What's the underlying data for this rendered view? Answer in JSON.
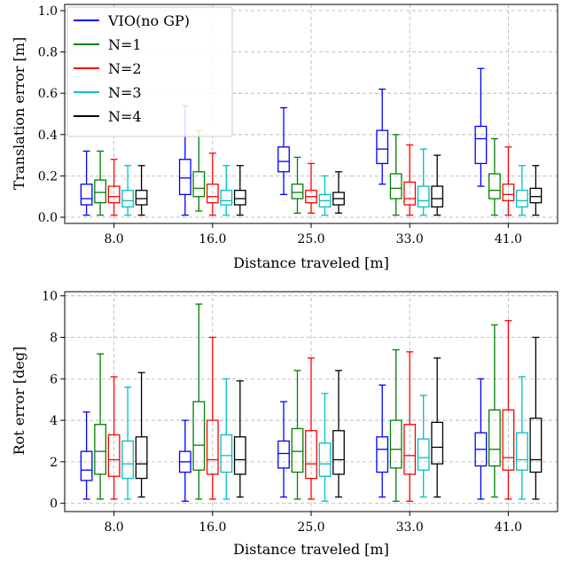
{
  "chart_data": [
    {
      "type": "box",
      "xlabel": "Distance traveled [m]",
      "ylabel": "Translation error [m]",
      "ylim": [
        -0.03,
        1.03
      ],
      "yticks": [
        0.0,
        0.2,
        0.4,
        0.6,
        0.8,
        1.0
      ],
      "ytick_labels": [
        "0.0",
        "0.2",
        "0.4",
        "0.6",
        "0.8",
        "1.0"
      ],
      "grid": true,
      "categories": [
        "8.0",
        "16.0",
        "25.0",
        "33.0",
        "41.0"
      ],
      "legend": {
        "placement": "top-left",
        "entries": [
          "VIO(no GP)",
          "N=1",
          "N=2",
          "N=3",
          "N=4"
        ]
      },
      "series": [
        {
          "name": "VIO(no GP)",
          "color": "#0000ff",
          "boxes": [
            {
              "whislo": 0.01,
              "q1": 0.06,
              "med": 0.09,
              "q3": 0.16,
              "whishi": 0.32
            },
            {
              "whislo": 0.01,
              "q1": 0.11,
              "med": 0.19,
              "q3": 0.28,
              "whishi": 0.54
            },
            {
              "whislo": 0.11,
              "q1": 0.22,
              "med": 0.27,
              "q3": 0.34,
              "whishi": 0.53
            },
            {
              "whislo": 0.16,
              "q1": 0.26,
              "med": 0.33,
              "q3": 0.42,
              "whishi": 0.62
            },
            {
              "whislo": 0.15,
              "q1": 0.26,
              "med": 0.38,
              "q3": 0.44,
              "whishi": 0.72
            }
          ]
        },
        {
          "name": "N=1",
          "color": "#008000",
          "boxes": [
            {
              "whislo": 0.01,
              "q1": 0.07,
              "med": 0.12,
              "q3": 0.18,
              "whishi": 0.32
            },
            {
              "whislo": 0.03,
              "q1": 0.1,
              "med": 0.14,
              "q3": 0.22,
              "whishi": 0.42
            },
            {
              "whislo": 0.02,
              "q1": 0.09,
              "med": 0.12,
              "q3": 0.16,
              "whishi": 0.29
            },
            {
              "whislo": 0.01,
              "q1": 0.09,
              "med": 0.14,
              "q3": 0.21,
              "whishi": 0.4
            },
            {
              "whislo": 0.01,
              "q1": 0.09,
              "med": 0.13,
              "q3": 0.21,
              "whishi": 0.38
            }
          ]
        },
        {
          "name": "N=2",
          "color": "#ff0000",
          "boxes": [
            {
              "whislo": 0.01,
              "q1": 0.07,
              "med": 0.1,
              "q3": 0.15,
              "whishi": 0.28
            },
            {
              "whislo": 0.01,
              "q1": 0.07,
              "med": 0.1,
              "q3": 0.16,
              "whishi": 0.31
            },
            {
              "whislo": 0.02,
              "q1": 0.07,
              "med": 0.1,
              "q3": 0.13,
              "whishi": 0.26
            },
            {
              "whislo": 0.01,
              "q1": 0.06,
              "med": 0.09,
              "q3": 0.17,
              "whishi": 0.35
            },
            {
              "whislo": 0.01,
              "q1": 0.08,
              "med": 0.11,
              "q3": 0.16,
              "whishi": 0.34
            }
          ]
        },
        {
          "name": "N=3",
          "color": "#00bfbf",
          "boxes": [
            {
              "whislo": 0.01,
              "q1": 0.05,
              "med": 0.08,
              "q3": 0.13,
              "whishi": 0.25
            },
            {
              "whislo": 0.01,
              "q1": 0.06,
              "med": 0.08,
              "q3": 0.13,
              "whishi": 0.25
            },
            {
              "whislo": 0.01,
              "q1": 0.05,
              "med": 0.08,
              "q3": 0.11,
              "whishi": 0.2
            },
            {
              "whislo": 0.01,
              "q1": 0.05,
              "med": 0.08,
              "q3": 0.15,
              "whishi": 0.33
            },
            {
              "whislo": 0.01,
              "q1": 0.05,
              "med": 0.08,
              "q3": 0.13,
              "whishi": 0.25
            }
          ]
        },
        {
          "name": "N=4",
          "color": "#000000",
          "boxes": [
            {
              "whislo": 0.01,
              "q1": 0.06,
              "med": 0.09,
              "q3": 0.13,
              "whishi": 0.25
            },
            {
              "whislo": 0.01,
              "q1": 0.06,
              "med": 0.09,
              "q3": 0.13,
              "whishi": 0.25
            },
            {
              "whislo": 0.02,
              "q1": 0.06,
              "med": 0.09,
              "q3": 0.12,
              "whishi": 0.22
            },
            {
              "whislo": 0.01,
              "q1": 0.05,
              "med": 0.09,
              "q3": 0.15,
              "whishi": 0.3
            },
            {
              "whislo": 0.01,
              "q1": 0.07,
              "med": 0.1,
              "q3": 0.14,
              "whishi": 0.25
            }
          ]
        }
      ]
    },
    {
      "type": "box",
      "xlabel": "Distance traveled [m]",
      "ylabel": "Rot error [deg]",
      "ylim": [
        -0.4,
        10.2
      ],
      "yticks": [
        0,
        2,
        4,
        6,
        8,
        10
      ],
      "ytick_labels": [
        "0",
        "2",
        "4",
        "6",
        "8",
        "10"
      ],
      "grid": true,
      "categories": [
        "8.0",
        "16.0",
        "25.0",
        "33.0",
        "41.0"
      ],
      "series": [
        {
          "name": "VIO(no GP)",
          "color": "#0000ff",
          "boxes": [
            {
              "whislo": 0.2,
              "q1": 1.1,
              "med": 1.6,
              "q3": 2.5,
              "whishi": 4.4
            },
            {
              "whislo": 0.1,
              "q1": 1.5,
              "med": 2.0,
              "q3": 2.5,
              "whishi": 4.0
            },
            {
              "whislo": 0.3,
              "q1": 1.7,
              "med": 2.4,
              "q3": 3.0,
              "whishi": 4.9
            },
            {
              "whislo": 0.3,
              "q1": 1.5,
              "med": 2.6,
              "q3": 3.2,
              "whishi": 5.7
            },
            {
              "whislo": 0.2,
              "q1": 1.8,
              "med": 2.6,
              "q3": 3.4,
              "whishi": 6.0
            }
          ]
        },
        {
          "name": "N=1",
          "color": "#008000",
          "boxes": [
            {
              "whislo": 0.2,
              "q1": 1.4,
              "med": 2.5,
              "q3": 3.8,
              "whishi": 7.2
            },
            {
              "whislo": 0.2,
              "q1": 1.6,
              "med": 2.8,
              "q3": 4.9,
              "whishi": 9.6
            },
            {
              "whislo": 0.2,
              "q1": 1.5,
              "med": 2.5,
              "q3": 3.6,
              "whishi": 6.4
            },
            {
              "whislo": 0.1,
              "q1": 1.7,
              "med": 2.6,
              "q3": 4.0,
              "whishi": 7.4
            },
            {
              "whislo": 0.3,
              "q1": 1.8,
              "med": 2.6,
              "q3": 4.5,
              "whishi": 8.6
            }
          ]
        },
        {
          "name": "N=2",
          "color": "#ff0000",
          "boxes": [
            {
              "whislo": 0.2,
              "q1": 1.3,
              "med": 2.1,
              "q3": 3.3,
              "whishi": 6.1
            },
            {
              "whislo": 0.2,
              "q1": 1.4,
              "med": 2.1,
              "q3": 4.0,
              "whishi": 8.0
            },
            {
              "whislo": 0.2,
              "q1": 1.2,
              "med": 1.9,
              "q3": 3.5,
              "whishi": 7.0
            },
            {
              "whislo": 0.1,
              "q1": 1.4,
              "med": 2.3,
              "q3": 3.8,
              "whishi": 7.3
            },
            {
              "whislo": 0.2,
              "q1": 1.6,
              "med": 2.2,
              "q3": 4.5,
              "whishi": 8.8
            }
          ]
        },
        {
          "name": "N=3",
          "color": "#00bfbf",
          "boxes": [
            {
              "whislo": 0.2,
              "q1": 1.2,
              "med": 1.9,
              "q3": 3.0,
              "whishi": 5.6
            },
            {
              "whislo": 0.2,
              "q1": 1.5,
              "med": 2.3,
              "q3": 3.3,
              "whishi": 6.0
            },
            {
              "whislo": 0.1,
              "q1": 1.3,
              "med": 1.9,
              "q3": 2.9,
              "whishi": 5.3
            },
            {
              "whislo": 0.3,
              "q1": 1.6,
              "med": 2.2,
              "q3": 3.1,
              "whishi": 5.2
            },
            {
              "whislo": 0.2,
              "q1": 1.6,
              "med": 2.1,
              "q3": 3.4,
              "whishi": 6.1
            }
          ]
        },
        {
          "name": "N=4",
          "color": "#000000",
          "boxes": [
            {
              "whislo": 0.3,
              "q1": 1.2,
              "med": 1.9,
              "q3": 3.2,
              "whishi": 6.3
            },
            {
              "whislo": 0.3,
              "q1": 1.4,
              "med": 2.1,
              "q3": 3.2,
              "whishi": 5.9
            },
            {
              "whislo": 0.3,
              "q1": 1.4,
              "med": 2.1,
              "q3": 3.5,
              "whishi": 6.4
            },
            {
              "whislo": 0.3,
              "q1": 1.9,
              "med": 2.7,
              "q3": 3.9,
              "whishi": 7.0
            },
            {
              "whislo": 0.2,
              "q1": 1.5,
              "med": 2.1,
              "q3": 4.1,
              "whishi": 8.0
            }
          ]
        }
      ]
    }
  ]
}
